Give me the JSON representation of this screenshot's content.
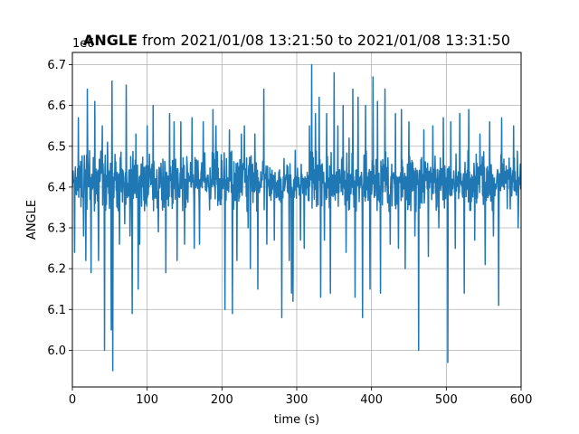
{
  "chart_data": {
    "type": "line",
    "title_bold": "ANGLE",
    "title_rest": " from 2021/01/08 13:21:50 to 2021/01/08 13:31:50",
    "xlabel": "time (s)",
    "ylabel": "ANGLE",
    "y_offset_label": "1e6",
    "xlim": [
      0,
      600
    ],
    "ylim": [
      5.91,
      6.73
    ],
    "x_ticks": [
      0,
      100,
      200,
      300,
      400,
      500,
      600
    ],
    "y_ticks": [
      6.0,
      6.1,
      6.2,
      6.3,
      6.4,
      6.5,
      6.6,
      6.7
    ],
    "y_tick_labels": [
      "6.0",
      "6.1",
      "6.2",
      "6.3",
      "6.4",
      "6.5",
      "6.6",
      "6.7"
    ],
    "grid": true,
    "legend": "none",
    "colors": {
      "series": "#1f77b4",
      "grid": "#b0b0b0"
    },
    "series": [
      {
        "band": {
          "center": 6.42,
          "lower": 6.34,
          "upper": 6.49,
          "sample_interval_s": 0.5,
          "quiet_segment": [
            258,
            315
          ],
          "quiet_lower": 6.36,
          "quiet_upper": 6.46
        },
        "spikes": [
          {
            "x": 3,
            "y": 6.24
          },
          {
            "x": 8,
            "y": 6.57
          },
          {
            "x": 15,
            "y": 6.28
          },
          {
            "x": 18,
            "y": 6.22
          },
          {
            "x": 20,
            "y": 6.64
          },
          {
            "x": 25,
            "y": 6.19
          },
          {
            "x": 30,
            "y": 6.61
          },
          {
            "x": 35,
            "y": 6.22
          },
          {
            "x": 40,
            "y": 6.55
          },
          {
            "x": 43,
            "y": 6.0
          },
          {
            "x": 47,
            "y": 6.51
          },
          {
            "x": 52,
            "y": 6.05
          },
          {
            "x": 53,
            "y": 6.66
          },
          {
            "x": 54,
            "y": 5.95
          },
          {
            "x": 57,
            "y": 6.48
          },
          {
            "x": 63,
            "y": 6.26
          },
          {
            "x": 70,
            "y": 6.31
          },
          {
            "x": 72,
            "y": 6.65
          },
          {
            "x": 77,
            "y": 6.28
          },
          {
            "x": 80,
            "y": 6.09
          },
          {
            "x": 85,
            "y": 6.53
          },
          {
            "x": 88,
            "y": 6.15
          },
          {
            "x": 90,
            "y": 6.26
          },
          {
            "x": 100,
            "y": 6.55
          },
          {
            "x": 108,
            "y": 6.6
          },
          {
            "x": 115,
            "y": 6.29
          },
          {
            "x": 125,
            "y": 6.19
          },
          {
            "x": 130,
            "y": 6.58
          },
          {
            "x": 136,
            "y": 6.56
          },
          {
            "x": 140,
            "y": 6.22
          },
          {
            "x": 145,
            "y": 6.56
          },
          {
            "x": 150,
            "y": 6.26
          },
          {
            "x": 160,
            "y": 6.57
          },
          {
            "x": 163,
            "y": 6.25
          },
          {
            "x": 170,
            "y": 6.26
          },
          {
            "x": 175,
            "y": 6.56
          },
          {
            "x": 188,
            "y": 6.59
          },
          {
            "x": 192,
            "y": 6.55
          },
          {
            "x": 204,
            "y": 6.1
          },
          {
            "x": 210,
            "y": 6.54
          },
          {
            "x": 214,
            "y": 6.09
          },
          {
            "x": 220,
            "y": 6.22
          },
          {
            "x": 226,
            "y": 6.53
          },
          {
            "x": 230,
            "y": 6.55
          },
          {
            "x": 235,
            "y": 6.3
          },
          {
            "x": 238,
            "y": 6.2
          },
          {
            "x": 244,
            "y": 6.53
          },
          {
            "x": 248,
            "y": 6.15
          },
          {
            "x": 256,
            "y": 6.64
          },
          {
            "x": 260,
            "y": 6.26
          },
          {
            "x": 270,
            "y": 6.27
          },
          {
            "x": 280,
            "y": 6.08
          },
          {
            "x": 283,
            "y": 6.47
          },
          {
            "x": 290,
            "y": 6.22
          },
          {
            "x": 293,
            "y": 6.14
          },
          {
            "x": 295,
            "y": 6.12
          },
          {
            "x": 298,
            "y": 6.49
          },
          {
            "x": 305,
            "y": 6.27
          },
          {
            "x": 310,
            "y": 6.25
          },
          {
            "x": 317,
            "y": 6.55
          },
          {
            "x": 320,
            "y": 6.7
          },
          {
            "x": 325,
            "y": 6.58
          },
          {
            "x": 330,
            "y": 6.62
          },
          {
            "x": 332,
            "y": 6.13
          },
          {
            "x": 337,
            "y": 6.27
          },
          {
            "x": 340,
            "y": 6.58
          },
          {
            "x": 345,
            "y": 6.14
          },
          {
            "x": 350,
            "y": 6.68
          },
          {
            "x": 355,
            "y": 6.55
          },
          {
            "x": 362,
            "y": 6.6
          },
          {
            "x": 366,
            "y": 6.24
          },
          {
            "x": 370,
            "y": 6.52
          },
          {
            "x": 375,
            "y": 6.64
          },
          {
            "x": 378,
            "y": 6.13
          },
          {
            "x": 382,
            "y": 6.62
          },
          {
            "x": 388,
            "y": 6.08
          },
          {
            "x": 392,
            "y": 6.6
          },
          {
            "x": 398,
            "y": 6.15
          },
          {
            "x": 402,
            "y": 6.67
          },
          {
            "x": 408,
            "y": 6.61
          },
          {
            "x": 412,
            "y": 6.14
          },
          {
            "x": 418,
            "y": 6.64
          },
          {
            "x": 425,
            "y": 6.26
          },
          {
            "x": 432,
            "y": 6.58
          },
          {
            "x": 436,
            "y": 6.25
          },
          {
            "x": 440,
            "y": 6.59
          },
          {
            "x": 445,
            "y": 6.2
          },
          {
            "x": 450,
            "y": 6.56
          },
          {
            "x": 458,
            "y": 6.28
          },
          {
            "x": 463,
            "y": 6.0
          },
          {
            "x": 470,
            "y": 6.54
          },
          {
            "x": 476,
            "y": 6.23
          },
          {
            "x": 482,
            "y": 6.55
          },
          {
            "x": 490,
            "y": 6.3
          },
          {
            "x": 496,
            "y": 6.57
          },
          {
            "x": 502,
            "y": 5.97
          },
          {
            "x": 506,
            "y": 6.56
          },
          {
            "x": 512,
            "y": 6.25
          },
          {
            "x": 518,
            "y": 6.58
          },
          {
            "x": 524,
            "y": 6.14
          },
          {
            "x": 530,
            "y": 6.59
          },
          {
            "x": 538,
            "y": 6.27
          },
          {
            "x": 545,
            "y": 6.53
          },
          {
            "x": 552,
            "y": 6.21
          },
          {
            "x": 558,
            "y": 6.56
          },
          {
            "x": 563,
            "y": 6.28
          },
          {
            "x": 570,
            "y": 6.11
          },
          {
            "x": 574,
            "y": 6.57
          },
          {
            "x": 590,
            "y": 6.55
          },
          {
            "x": 596,
            "y": 6.3
          }
        ]
      }
    ]
  }
}
